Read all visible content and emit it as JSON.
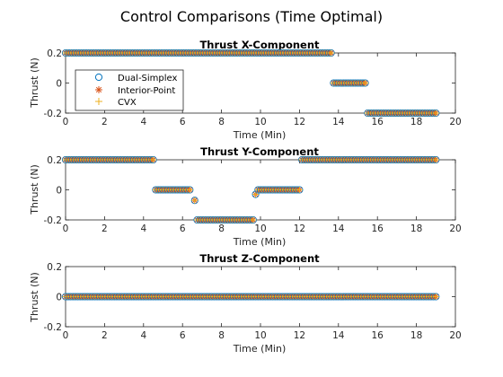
{
  "figure": {
    "title": "Control Comparisons (Time Optimal)"
  },
  "legend": {
    "placement": "upper-left of first panel",
    "entries": [
      {
        "label": "Dual-Simplex",
        "marker": "circle",
        "color": "#0072BD"
      },
      {
        "label": "Interior-Point",
        "marker": "asterisk",
        "color": "#D95319"
      },
      {
        "label": "CVX",
        "marker": "plus",
        "color": "#EDB120"
      }
    ]
  },
  "chart_data": [
    {
      "type": "scatter",
      "title": "Thrust X-Component",
      "xlabel": "Time (Min)",
      "ylabel": "Thrust (N)",
      "xlim": [
        0,
        20
      ],
      "ylim": [
        -0.2,
        0.2
      ],
      "xticks": [
        "0",
        "2",
        "4",
        "6",
        "8",
        "10",
        "12",
        "14",
        "16",
        "18",
        "20"
      ],
      "yticks": [
        "-0.2",
        "0",
        "0.2"
      ],
      "grid": false,
      "sample_step_min": 0.125,
      "segments": [
        {
          "x_start": 0.0,
          "x_end": 13.625,
          "value": 0.2
        },
        {
          "x_start": 13.75,
          "x_end": 15.375,
          "value": 0.0
        },
        {
          "x_start": 15.5,
          "x_end": 19.0,
          "value": -0.2
        }
      ],
      "series": [
        {
          "name": "Dual-Simplex",
          "same_as_segments": true
        },
        {
          "name": "Interior-Point",
          "same_as_segments": true
        },
        {
          "name": "CVX",
          "same_as_segments": true
        }
      ]
    },
    {
      "type": "scatter",
      "title": "Thrust Y-Component",
      "xlabel": "Time (Min)",
      "ylabel": "Thrust (N)",
      "xlim": [
        0,
        20
      ],
      "ylim": [
        -0.2,
        0.2
      ],
      "xticks": [
        "0",
        "2",
        "4",
        "6",
        "8",
        "10",
        "12",
        "14",
        "16",
        "18",
        "20"
      ],
      "yticks": [
        "-0.2",
        "0",
        "0.2"
      ],
      "grid": false,
      "sample_step_min": 0.125,
      "segments": [
        {
          "x_start": 0.0,
          "x_end": 4.5,
          "value": 0.2
        },
        {
          "x_start": 4.625,
          "x_end": 6.375,
          "value": 0.0
        },
        {
          "x_start": 6.625,
          "x_end": 6.625,
          "value": -0.07
        },
        {
          "x_start": 6.75,
          "x_end": 9.625,
          "value": -0.2
        },
        {
          "x_start": 9.75,
          "x_end": 9.75,
          "value": -0.03
        },
        {
          "x_start": 9.875,
          "x_end": 12.0,
          "value": 0.0
        },
        {
          "x_start": 12.125,
          "x_end": 19.0,
          "value": 0.2
        }
      ],
      "series": [
        {
          "name": "Dual-Simplex",
          "same_as_segments": true
        },
        {
          "name": "Interior-Point",
          "same_as_segments": true
        },
        {
          "name": "CVX",
          "same_as_segments": true
        }
      ]
    },
    {
      "type": "scatter",
      "title": "Thrust Z-Component",
      "xlabel": "Time (Min)",
      "ylabel": "Thrust (N)",
      "xlim": [
        0,
        20
      ],
      "ylim": [
        -0.2,
        0.2
      ],
      "xticks": [
        "0",
        "2",
        "4",
        "6",
        "8",
        "10",
        "12",
        "14",
        "16",
        "18",
        "20"
      ],
      "yticks": [
        "-0.2",
        "0",
        "0.2"
      ],
      "grid": false,
      "sample_step_min": 0.125,
      "segments": [
        {
          "x_start": 0.0,
          "x_end": 19.0,
          "value": 0.0
        }
      ],
      "series": [
        {
          "name": "Dual-Simplex",
          "same_as_segments": true
        },
        {
          "name": "Interior-Point",
          "same_as_segments": true
        },
        {
          "name": "CVX",
          "same_as_segments": true
        }
      ]
    }
  ]
}
